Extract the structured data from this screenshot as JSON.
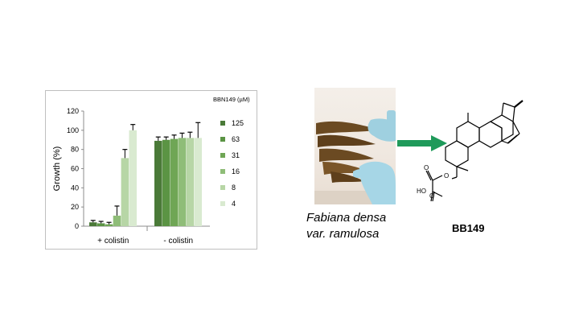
{
  "chart_data": {
    "type": "bar",
    "ylabel": "Growth (%)",
    "ylim": [
      0,
      120
    ],
    "yticks": [
      0,
      20,
      40,
      60,
      80,
      100,
      120
    ],
    "categories": [
      "+ colistin",
      "- colistin"
    ],
    "legend_title": "BBN149 (µM)",
    "series": [
      {
        "name": "125",
        "color": "#4a7a38",
        "values": [
          4,
          89
        ],
        "errors": [
          2,
          4
        ]
      },
      {
        "name": "63",
        "color": "#5b9444",
        "values": [
          3,
          90
        ],
        "errors": [
          2,
          3
        ]
      },
      {
        "name": "31",
        "color": "#6fa655",
        "values": [
          2,
          91
        ],
        "errors": [
          2,
          4
        ]
      },
      {
        "name": "16",
        "color": "#8fbd78",
        "values": [
          11,
          92
        ],
        "errors": [
          10,
          5
        ]
      },
      {
        "name": "8",
        "color": "#b7d6a6",
        "values": [
          71,
          92
        ],
        "errors": [
          9,
          6
        ]
      },
      {
        "name": "4",
        "color": "#d9ead0",
        "values": [
          100,
          92
        ],
        "errors": [
          6,
          16
        ]
      }
    ],
    "legend_position": "right"
  },
  "species": {
    "line1": "Fabiana densa",
    "line2": "var. ramulosa"
  },
  "compound": {
    "label": "BB149",
    "ho_label": "HO"
  },
  "colors": {
    "arrow": "#1f9a5a",
    "glove": "#9fd0e0",
    "plant": "#6b4a22"
  }
}
